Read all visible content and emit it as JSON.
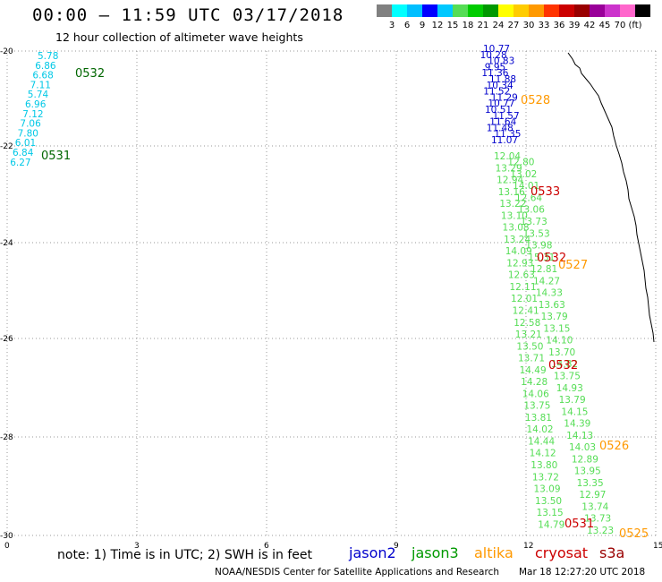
{
  "header": {
    "title": "00:00 — 11:59 UTC 03/17/2018",
    "subtitle": "12 hour collection of altimeter wave heights"
  },
  "legend": {
    "colors": [
      "#808080",
      "#00ffff",
      "#00bfff",
      "#0000ff",
      "#00c8ff",
      "#55dd55",
      "#00cc00",
      "#009900",
      "#ffff00",
      "#ffcc00",
      "#ff9900",
      "#ff3300",
      "#cc0000",
      "#990000",
      "#990099",
      "#cc33cc",
      "#ff66cc",
      "#000000"
    ],
    "labels": [
      "3",
      "6",
      "9",
      "12",
      "15",
      "18",
      "21",
      "24",
      "27",
      "30",
      "33",
      "36",
      "39",
      "42",
      "45",
      "70",
      "(ft)"
    ]
  },
  "axes": {
    "x_ticks": [
      "0",
      "3",
      "6",
      "9",
      "12",
      "15"
    ],
    "y_ticks": [
      "-20",
      "-22",
      "-24",
      "-26",
      "-28",
      "-30"
    ]
  },
  "tracks": {
    "cyan_heights": [
      "5.78",
      "6.86",
      "6.68",
      "7.11",
      "5.74",
      "6.96",
      "7.12",
      "7.06",
      "7.80",
      "6.01",
      "6.84",
      "6.27"
    ],
    "blue_heights": [
      "10.77",
      "10.28",
      "10.83",
      "9.95",
      "11.36",
      "11.88",
      "10.34",
      "11.52",
      "11.29",
      "10.77",
      "10.51",
      "11.57",
      "11.64",
      "11.48",
      "11.35",
      "11.07"
    ],
    "green_heights": [
      "12.04",
      "12.80",
      "13.29",
      "13.02",
      "12.94",
      "14.01",
      "13.16",
      "12.64",
      "13.22",
      "13.06",
      "13.10",
      "13.73",
      "13.08",
      "13.53",
      "13.24",
      "13.98",
      "14.09",
      "15.31",
      "12.93",
      "12.81",
      "12.63",
      "14.27",
      "12.11",
      "14.33",
      "12.01",
      "13.63",
      "12.41",
      "13.79",
      "12.58",
      "13.15",
      "13.21",
      "14.10",
      "13.50",
      "13.70",
      "13.71",
      "14.82",
      "14.49",
      "13.75",
      "14.28",
      "14.93",
      "14.06",
      "13.79",
      "13.75",
      "14.15",
      "13.81",
      "14.39",
      "14.02",
      "14.13",
      "14.44",
      "14.03",
      "14.12",
      "12.89",
      "13.80",
      "13.95",
      "13.72",
      "13.35",
      "13.09",
      "12.97",
      "13.50",
      "13.74",
      "13.15",
      "13.73",
      "14.79",
      "13.23"
    ]
  },
  "pass_labels": {
    "p0532_green": "0532",
    "p0531_green": "0531",
    "p0528": "0528",
    "p0533": "0533",
    "p0532_red_a": "0532",
    "p0527": "0527",
    "p0532_red_b": "0532",
    "p0526": "0526",
    "p0531_red": "0531",
    "p0525": "0525"
  },
  "footer": {
    "note": "note: 1) Time is in UTC; 2) SWH is in feet",
    "satellites": [
      {
        "name": "jason2",
        "color": "#0000cc"
      },
      {
        "name": "jason3",
        "color": "#009900"
      },
      {
        "name": "altika",
        "color": "#ff9900"
      },
      {
        "name": "cryosat",
        "color": "#cc0000"
      },
      {
        "name": "s3a",
        "color": "#990000"
      }
    ],
    "credit": "NOAA/NESDIS Center for Satellite Applications and Research",
    "timestamp": "Mar 18 12:27:20 UTC 2018"
  }
}
